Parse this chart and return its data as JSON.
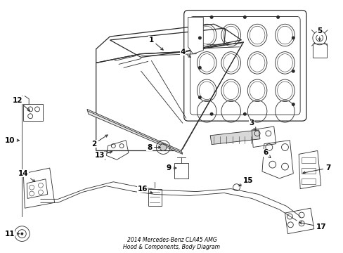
{
  "title": "2014 Mercedes-Benz CLA45 AMG\nHood & Components, Body Diagram",
  "background_color": "#ffffff",
  "line_color": "#2a2a2a",
  "label_color": "#000000",
  "fig_width": 4.89,
  "fig_height": 3.6,
  "dpi": 100
}
